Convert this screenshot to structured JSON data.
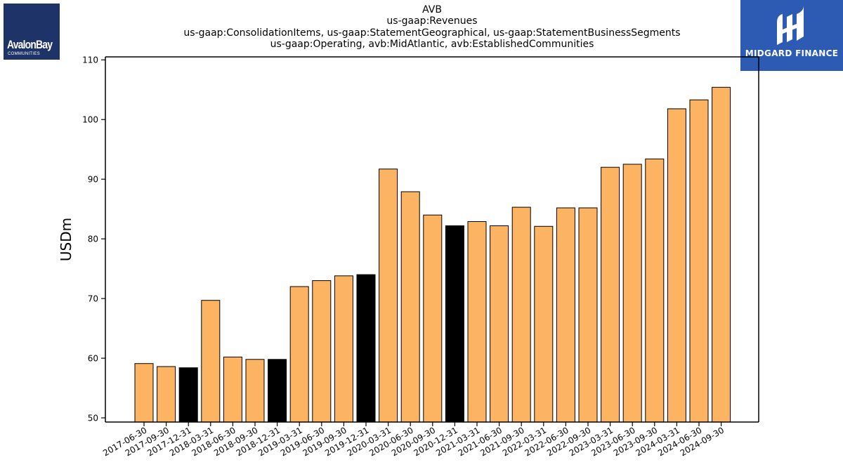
{
  "header": {
    "title_lines": [
      "AVB",
      "us-gaap:Revenues",
      "us-gaap:ConsolidationItems, us-gaap:StatementGeographical, us-gaap:StatementBusinessSegments",
      "us-gaap:Operating, avb:MidAtlantic, avb:EstablishedCommunities"
    ]
  },
  "logos": {
    "left_brand": "AvalonBay",
    "left_sub": "COMMUNITIES",
    "right_name": "MIDGARD FINANCE"
  },
  "colors": {
    "bar_default": "#fdb462",
    "bar_highlight": "#000000",
    "left_logo_bg": "#1e3469",
    "right_logo_bg": "#2d5bb4"
  },
  "chart_data": {
    "type": "bar",
    "ylabel": "USDm",
    "ylim": [
      49.3,
      110.5
    ],
    "yticks": [
      50,
      60,
      70,
      80,
      90,
      100,
      110
    ],
    "categories": [
      "2017-06-30",
      "2017-09-30",
      "2017-12-31",
      "2018-03-31",
      "2018-06-30",
      "2018-09-30",
      "2018-12-31",
      "2019-03-31",
      "2019-06-30",
      "2019-09-30",
      "2019-12-31",
      "2020-03-31",
      "2020-06-30",
      "2020-09-30",
      "2020-12-31",
      "2021-03-31",
      "2021-06-30",
      "2021-09-30",
      "2022-03-31",
      "2022-06-30",
      "2022-09-30",
      "2023-03-31",
      "2023-06-30",
      "2023-09-30",
      "2024-03-31",
      "2024-06-30",
      "2024-09-30"
    ],
    "values": [
      59.1,
      58.6,
      58.4,
      69.7,
      60.2,
      59.8,
      59.8,
      72.0,
      73.0,
      73.8,
      74.0,
      91.7,
      87.9,
      84.0,
      82.2,
      82.9,
      82.2,
      85.3,
      82.1,
      85.2,
      85.2,
      92.0,
      92.5,
      93.4,
      101.8,
      103.3,
      105.4
    ],
    "highlighted": [
      false,
      false,
      true,
      false,
      false,
      false,
      true,
      false,
      false,
      false,
      true,
      false,
      false,
      false,
      true,
      false,
      false,
      false,
      false,
      false,
      false,
      false,
      false,
      false,
      false,
      false,
      false
    ],
    "grid": false,
    "legend": "none"
  }
}
